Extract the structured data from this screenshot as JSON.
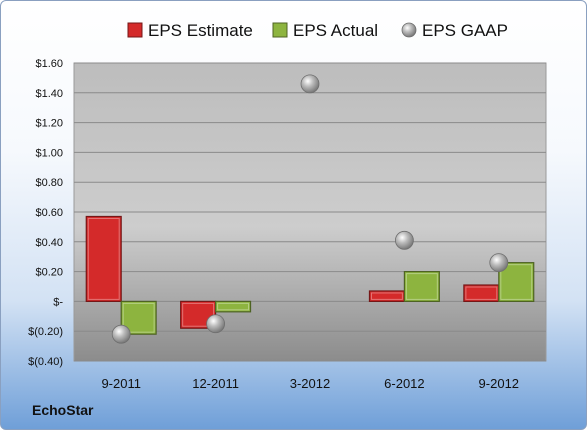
{
  "chart_data": {
    "type": "bar",
    "categories": [
      "9-2011",
      "12-2011",
      "3-2012",
      "6-2012",
      "9-2012"
    ],
    "series": [
      {
        "name": "EPS Estimate",
        "values": [
          0.57,
          -0.18,
          null,
          0.07,
          0.11
        ],
        "color": "#d42a2a",
        "kind": "bar"
      },
      {
        "name": "EPS Actual",
        "values": [
          -0.22,
          -0.07,
          null,
          0.2,
          0.26
        ],
        "color": "#8db43f",
        "kind": "bar"
      },
      {
        "name": "EPS GAAP",
        "values": [
          -0.22,
          -0.15,
          1.46,
          0.41,
          0.26
        ],
        "color": "#a8a8a8",
        "kind": "marker"
      }
    ],
    "ylim": [
      -0.4,
      1.6
    ],
    "y_ticks": [
      {
        "value": 1.6,
        "label": "$1.60"
      },
      {
        "value": 1.4,
        "label": "$1.40"
      },
      {
        "value": 1.2,
        "label": "$1.20"
      },
      {
        "value": 1.0,
        "label": "$1.00"
      },
      {
        "value": 0.8,
        "label": "$0.80"
      },
      {
        "value": 0.6,
        "label": "$0.60"
      },
      {
        "value": 0.4,
        "label": "$0.40"
      },
      {
        "value": 0.2,
        "label": "$0.20"
      },
      {
        "value": 0.0,
        "label": "$-"
      },
      {
        "value": -0.2,
        "label": "$(0.20)"
      },
      {
        "value": -0.4,
        "label": "$(0.40)"
      }
    ],
    "grid": true,
    "legend_position": "top"
  },
  "company": "EchoStar"
}
